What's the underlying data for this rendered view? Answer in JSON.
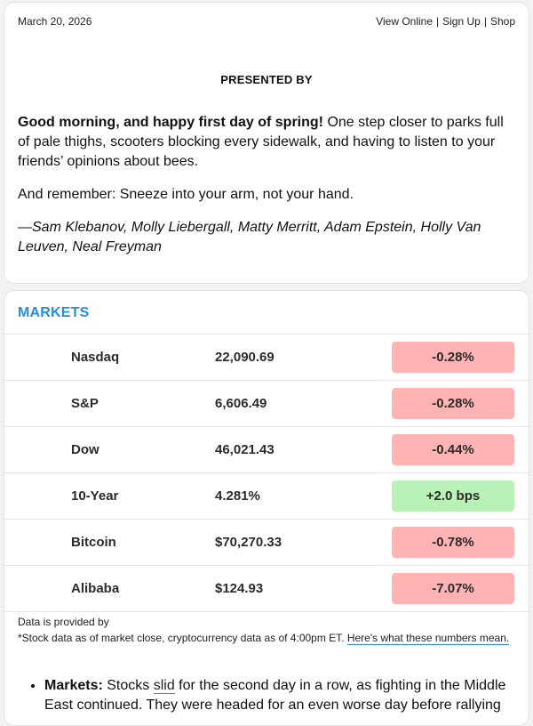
{
  "header": {
    "date": "March 20, 2026",
    "links": [
      "View Online",
      "Sign Up",
      "Shop"
    ],
    "separator": "|"
  },
  "presented_by": "PRESENTED BY",
  "intro": {
    "greeting": "Good morning, and happy first day of spring!",
    "greeting_rest": " One step closer to parks full of pale thighs, scooters blocking every sidewalk, and having to listen to your friends’ opinions about bees.",
    "reminder": "And remember: Sneeze into your arm, not your hand.",
    "signoff": "—Sam Klebanov, Molly Liebergall, Matty Merritt, Adam Epstein, Holly Van Leuven, Neal Freyman"
  },
  "markets": {
    "title": "MARKETS",
    "rows": [
      {
        "name": "Nasdaq",
        "value": "22,090.69",
        "change": "-0.28%",
        "direction": "down"
      },
      {
        "name": "S&P",
        "value": "6,606.49",
        "change": "-0.28%",
        "direction": "down"
      },
      {
        "name": "Dow",
        "value": "46,021.43",
        "change": "-0.44%",
        "direction": "down"
      },
      {
        "name": "10-Year",
        "value": "4.281%",
        "change": "+2.0 bps",
        "direction": "up"
      },
      {
        "name": "Bitcoin",
        "value": "$70,270.33",
        "change": "-0.78%",
        "direction": "down"
      },
      {
        "name": "Alibaba",
        "value": "$124.93",
        "change": "-7.07%",
        "direction": "down"
      }
    ],
    "provided_by": "Data is provided by",
    "disclaimer": "*Stock data as of market close, cryptocurrency data as of 4:00pm ET. ",
    "disclaimer_link": "Here's what these numbers mean."
  },
  "bullet": {
    "lead": "Markets:",
    "pre": " Stocks ",
    "link": "slid",
    "post": " for the second day in a row, as fighting in the Middle East continued. They were headed for an even worse day before rallying"
  },
  "colors": {
    "accent": "#2a8be0",
    "down_badge": "#ffb3b3",
    "up_badge": "#b9f1b7"
  }
}
